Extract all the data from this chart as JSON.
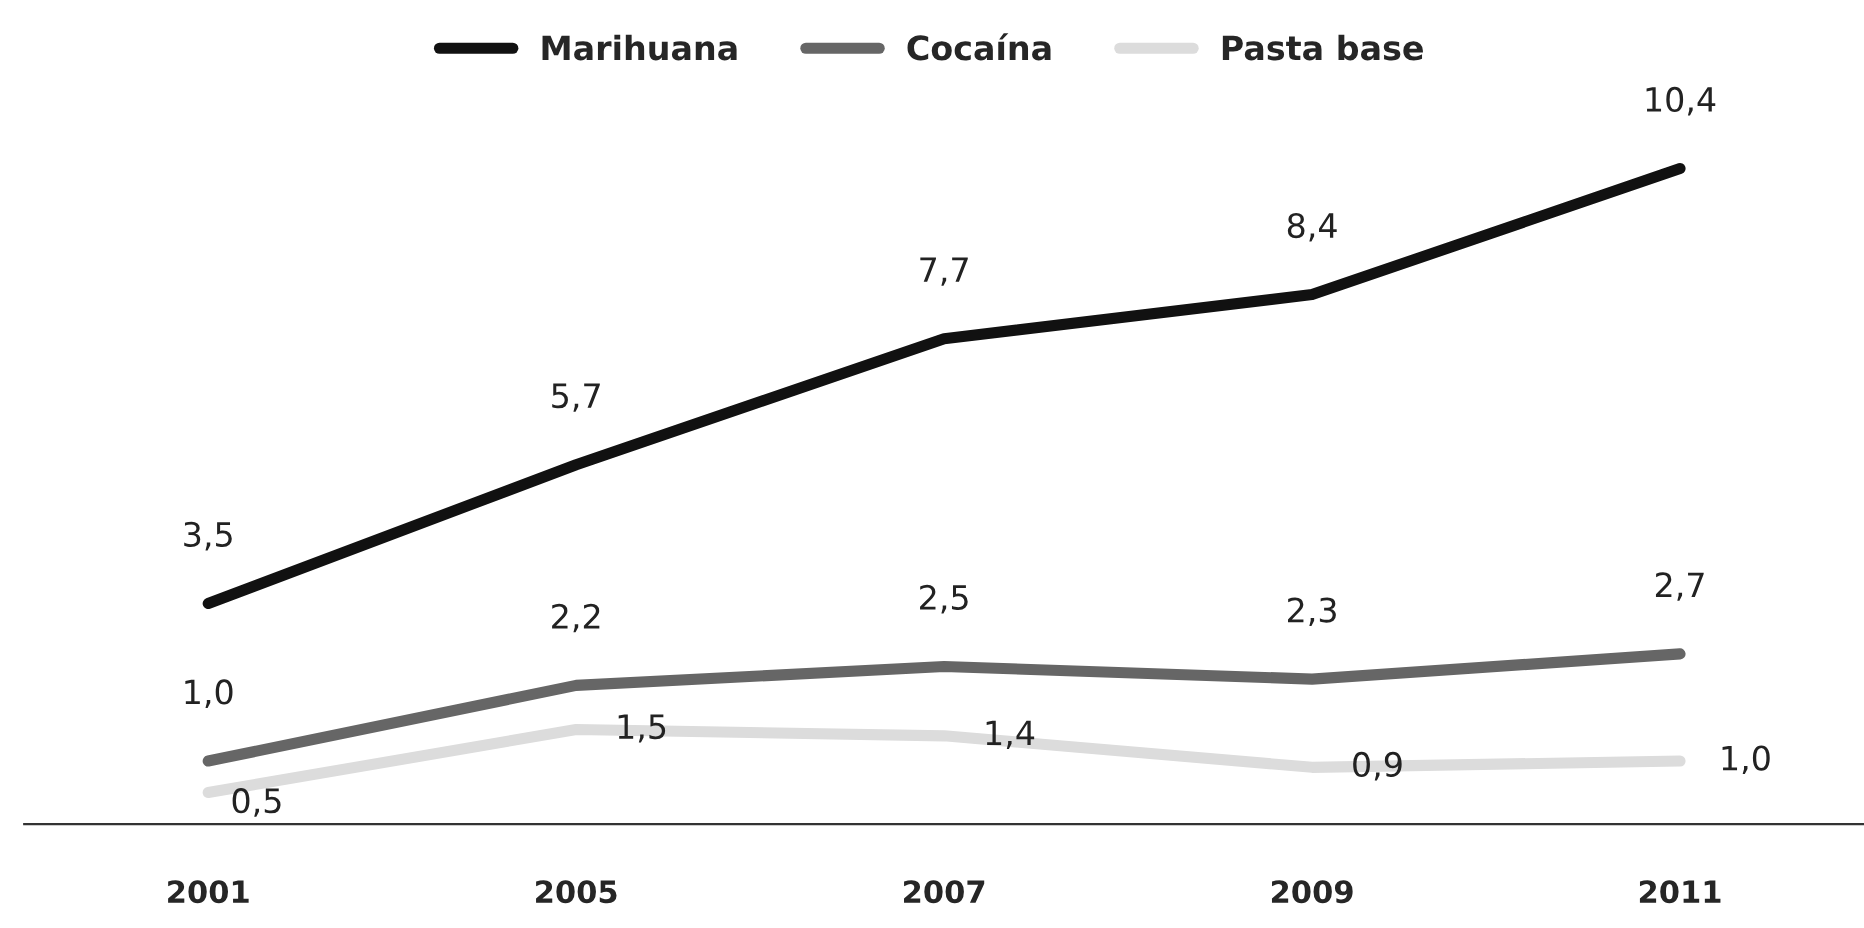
{
  "chart_data": {
    "type": "line",
    "categories": [
      "2001",
      "2005",
      "2007",
      "2009",
      "2011"
    ],
    "series": [
      {
        "name": "Marihuana",
        "color": "#111111",
        "values": [
          3.5,
          5.7,
          7.7,
          8.4,
          10.4
        ],
        "value_labels": [
          "3,5",
          "5,7",
          "7,7",
          "8,4",
          "10,4"
        ]
      },
      {
        "name": "Cocaína",
        "color": "#666666",
        "values": [
          1.0,
          2.2,
          2.5,
          2.3,
          2.7
        ],
        "value_labels": [
          "1,0",
          "2,2",
          "2,5",
          "2,3",
          "2,7"
        ]
      },
      {
        "name": "Pasta base",
        "color": "#dcdcdc",
        "values": [
          0.5,
          1.5,
          1.4,
          0.9,
          1.0
        ],
        "value_labels": [
          "0,5",
          "1,5",
          "1,4",
          "0,9",
          "1,0"
        ]
      }
    ],
    "legend": "top",
    "marker": "none",
    "line_style": "solid",
    "tick_labels": "x"
  }
}
